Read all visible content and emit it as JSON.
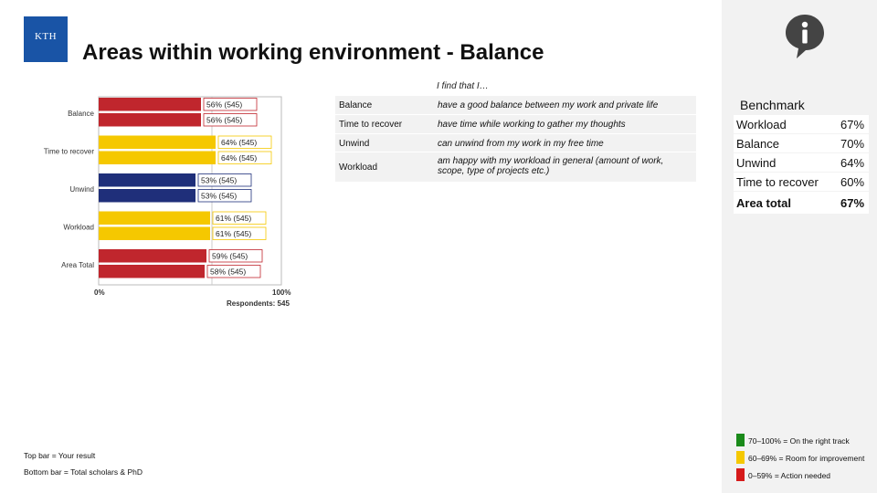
{
  "logo": {
    "text": "KTH"
  },
  "title": "Areas within working environment - Balance",
  "info_icon": "info-icon",
  "chart_data": {
    "type": "bar",
    "orientation": "horizontal",
    "categories": [
      "Balance",
      "Time to recover",
      "Unwind",
      "Workload",
      "Area Total"
    ],
    "series": [
      {
        "values": [
          56,
          64,
          53,
          61,
          59
        ],
        "respondents": [
          545,
          545,
          545,
          545,
          545
        ]
      },
      {
        "values": [
          56,
          64,
          53,
          61,
          58
        ],
        "respondents": [
          545,
          545,
          545,
          545,
          545
        ]
      }
    ],
    "bar_colors": [
      "#c0262d",
      "#f5c800",
      "#1f2f7a",
      "#f5c800",
      "#c0262d"
    ],
    "xlim": [
      0,
      100
    ],
    "x_min_label": "0%",
    "x_max_label": "100%",
    "respondents_label": "Respondents: 545",
    "grid": false,
    "legend": "none"
  },
  "statements": {
    "intro": "I find that I…",
    "rows": [
      {
        "area": "Balance",
        "text": "have a good balance between my work and private life"
      },
      {
        "area": "Time to recover",
        "text": "have time while working to gather my thoughts"
      },
      {
        "area": "Unwind",
        "text": "can unwind from my work in my free time"
      },
      {
        "area": "Workload",
        "text": "am happy with my workload in general (amount of work, scope, type of projects etc.)"
      }
    ]
  },
  "benchmark": {
    "title": "Benchmark",
    "rows": [
      {
        "label": "Workload",
        "value": "67%"
      },
      {
        "label": "Balance",
        "value": "70%"
      },
      {
        "label": "Unwind",
        "value": "64%"
      },
      {
        "label": "Time to recover",
        "value": "60%"
      }
    ],
    "total": {
      "label": "Area total",
      "value": "67%"
    }
  },
  "notes": {
    "top": "Top bar = Your result",
    "bottom": "Bottom bar = Total scholars & PhD"
  },
  "legend": [
    {
      "color": "#1a8a1a",
      "text": "70–100% = On the right track"
    },
    {
      "color": "#f5c800",
      "text": "60–69% = Room for improvement"
    },
    {
      "color": "#d61a1a",
      "text": "0–59% = Action needed"
    }
  ]
}
